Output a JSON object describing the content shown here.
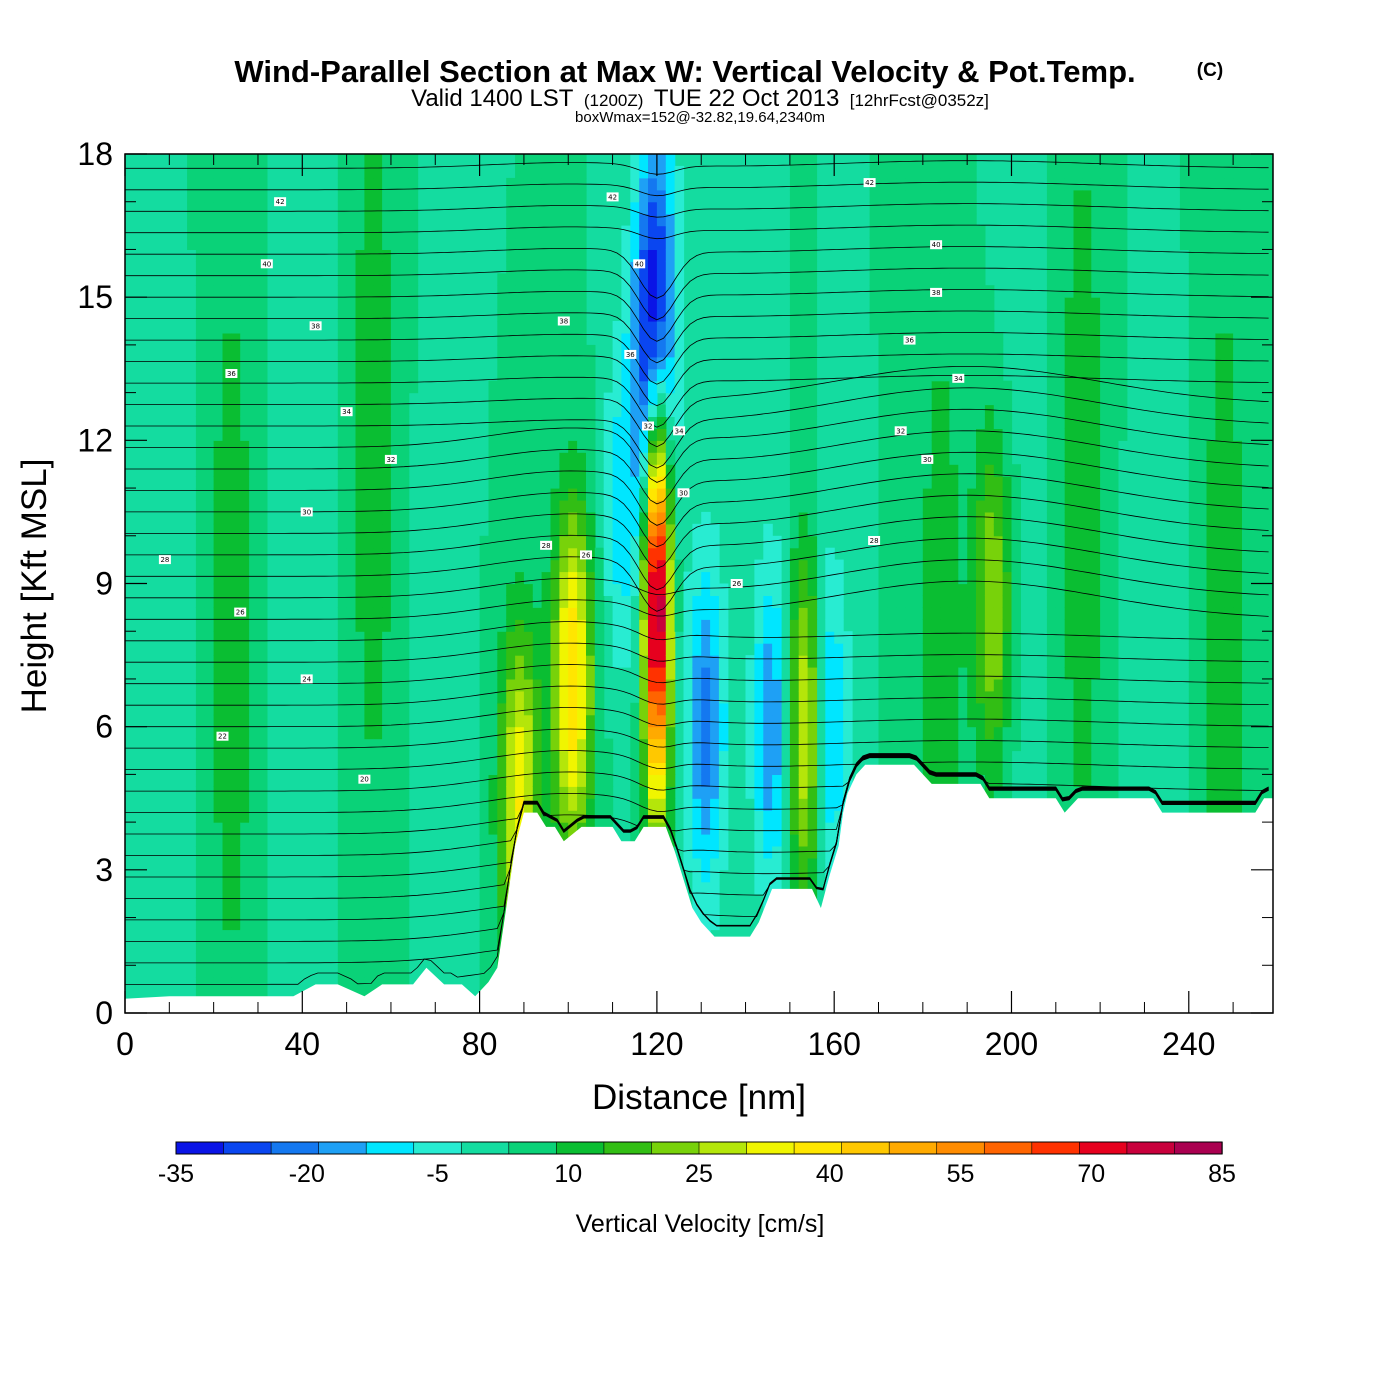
{
  "header": {
    "title": "Wind-Parallel Section at Max W: Vertical Velocity & Pot.Temp.",
    "copyright": "(C)",
    "subtitle_a": "Valid 1400 LST",
    "subtitle_b": "(1200Z)",
    "subtitle_c": "TUE 22 Oct 2013",
    "subtitle_d": "[12hrFcst@0352z]",
    "subtitle2": "boxWmax=152@-32.82,19.64,2340m"
  },
  "chart_data": {
    "type": "heatmap",
    "title": "Wind-Parallel Section at Max W: Vertical Velocity & Pot.Temp.",
    "xlabel": "Distance [nm]",
    "ylabel": "Height [Kft MSL]",
    "xlim": [
      0,
      259
    ],
    "ylim": [
      0,
      18
    ],
    "x_ticks": [
      0,
      40,
      80,
      120,
      160,
      200,
      240
    ],
    "x_tick_labels": [
      "0",
      "40",
      "80",
      "120",
      "160",
      "200",
      "240"
    ],
    "y_ticks": [
      0,
      3,
      6,
      9,
      12,
      15,
      18
    ],
    "y_tick_labels": [
      "0",
      "3",
      "6",
      "9",
      "12",
      "15",
      "18"
    ],
    "colorbar": {
      "label": "Vertical Velocity [cm/s]",
      "min": -35,
      "max": 85,
      "step": 5,
      "tick_values": [
        -35,
        -20,
        -5,
        10,
        25,
        40,
        55,
        70,
        85
      ],
      "tick_labels": [
        "-35",
        "-20",
        "-5",
        "10",
        "25",
        "40",
        "55",
        "70",
        "85"
      ],
      "colors": [
        "#0a14e6",
        "#0a46f0",
        "#1478f0",
        "#1ea0f5",
        "#00e6ff",
        "#28ecd2",
        "#14dca0",
        "#0ad278",
        "#0abe32",
        "#32be14",
        "#78d20a",
        "#b4e60a",
        "#f0f500",
        "#ffe600",
        "#ffc800",
        "#ffaa00",
        "#ff8c00",
        "#ff6400",
        "#ff3200",
        "#e6001e",
        "#c8003c",
        "#aa0050"
      ]
    },
    "terrain": [
      [
        0,
        0.3
      ],
      [
        10,
        0.35
      ],
      [
        20,
        0.35
      ],
      [
        30,
        0.35
      ],
      [
        38,
        0.35
      ],
      [
        43,
        0.6
      ],
      [
        48,
        0.6
      ],
      [
        54,
        0.35
      ],
      [
        58,
        0.6
      ],
      [
        65,
        0.6
      ],
      [
        68,
        0.95
      ],
      [
        72,
        0.6
      ],
      [
        76,
        0.6
      ],
      [
        79,
        0.35
      ],
      [
        82,
        0.65
      ],
      [
        84,
        0.95
      ],
      [
        86,
        2.2
      ],
      [
        88,
        3.5
      ],
      [
        90,
        4.2
      ],
      [
        93,
        4.2
      ],
      [
        95,
        3.9
      ],
      [
        97,
        3.9
      ],
      [
        99,
        3.6
      ],
      [
        103,
        3.9
      ],
      [
        110,
        3.9
      ],
      [
        112,
        3.6
      ],
      [
        115,
        3.6
      ],
      [
        117,
        3.9
      ],
      [
        122,
        3.9
      ],
      [
        124,
        3.4
      ],
      [
        126,
        2.8
      ],
      [
        128,
        2.2
      ],
      [
        130,
        1.9
      ],
      [
        133,
        1.6
      ],
      [
        141,
        1.6
      ],
      [
        143,
        1.9
      ],
      [
        146,
        2.6
      ],
      [
        155,
        2.6
      ],
      [
        157,
        2.2
      ],
      [
        159,
        2.9
      ],
      [
        161,
        3.5
      ],
      [
        162,
        4.2
      ],
      [
        163,
        4.6
      ],
      [
        165,
        5.0
      ],
      [
        167,
        5.2
      ],
      [
        178,
        5.2
      ],
      [
        182,
        4.8
      ],
      [
        193,
        4.8
      ],
      [
        195,
        4.5
      ],
      [
        210,
        4.5
      ],
      [
        212,
        4.2
      ],
      [
        215,
        4.5
      ],
      [
        232,
        4.5
      ],
      [
        234,
        4.2
      ],
      [
        255,
        4.2
      ],
      [
        257,
        4.5
      ],
      [
        259,
        4.5
      ]
    ],
    "velocity_features": [
      {
        "x": 120,
        "y": 8.8,
        "peak": 80
      },
      {
        "x": 101,
        "y": 7.0,
        "peak": 35
      },
      {
        "x": 89,
        "y": 4.4,
        "peak": 30
      },
      {
        "x": 154,
        "y": 6.0,
        "peak": 35
      },
      {
        "x": 196,
        "y": 8.6,
        "peak": 22
      },
      {
        "x": 131,
        "y": 6.0,
        "peak": -22
      },
      {
        "x": 146,
        "y": 6.0,
        "peak": -20
      },
      {
        "x": 158,
        "y": 6.0,
        "peak": -25
      },
      {
        "x": 119,
        "y": 13.5,
        "peak": -28
      },
      {
        "x": 120,
        "y": 15.5,
        "peak": -18
      },
      {
        "x": 112,
        "y": 10.5,
        "peak": -12
      }
    ],
    "isentrope_labels": [
      {
        "x": 35,
        "y": 17.0,
        "text": "42"
      },
      {
        "x": 110,
        "y": 17.1,
        "text": "42"
      },
      {
        "x": 168,
        "y": 17.4,
        "text": "42"
      },
      {
        "x": 32,
        "y": 15.7,
        "text": "40"
      },
      {
        "x": 116,
        "y": 15.7,
        "text": "40"
      },
      {
        "x": 183,
        "y": 16.1,
        "text": "40"
      },
      {
        "x": 43,
        "y": 14.4,
        "text": "38"
      },
      {
        "x": 99,
        "y": 14.5,
        "text": "38"
      },
      {
        "x": 183,
        "y": 15.1,
        "text": "38"
      },
      {
        "x": 24,
        "y": 13.4,
        "text": "36"
      },
      {
        "x": 114,
        "y": 13.8,
        "text": "36"
      },
      {
        "x": 177,
        "y": 14.1,
        "text": "36"
      },
      {
        "x": 50,
        "y": 12.6,
        "text": "34"
      },
      {
        "x": 125,
        "y": 12.2,
        "text": "34"
      },
      {
        "x": 188,
        "y": 13.3,
        "text": "34"
      },
      {
        "x": 60,
        "y": 11.6,
        "text": "32"
      },
      {
        "x": 118,
        "y": 12.3,
        "text": "32"
      },
      {
        "x": 175,
        "y": 12.2,
        "text": "32"
      },
      {
        "x": 41,
        "y": 10.5,
        "text": "30"
      },
      {
        "x": 126,
        "y": 10.9,
        "text": "30"
      },
      {
        "x": 181,
        "y": 11.6,
        "text": "30"
      },
      {
        "x": 9,
        "y": 9.5,
        "text": "28"
      },
      {
        "x": 95,
        "y": 9.8,
        "text": "28"
      },
      {
        "x": 169,
        "y": 9.9,
        "text": "28"
      },
      {
        "x": 26,
        "y": 8.4,
        "text": "26"
      },
      {
        "x": 104,
        "y": 9.6,
        "text": "26"
      },
      {
        "x": 138,
        "y": 9.0,
        "text": "26"
      },
      {
        "x": 41,
        "y": 7.0,
        "text": "24"
      },
      {
        "x": 22,
        "y": 5.8,
        "text": "22"
      },
      {
        "x": 54,
        "y": 4.9,
        "text": "20"
      }
    ]
  }
}
